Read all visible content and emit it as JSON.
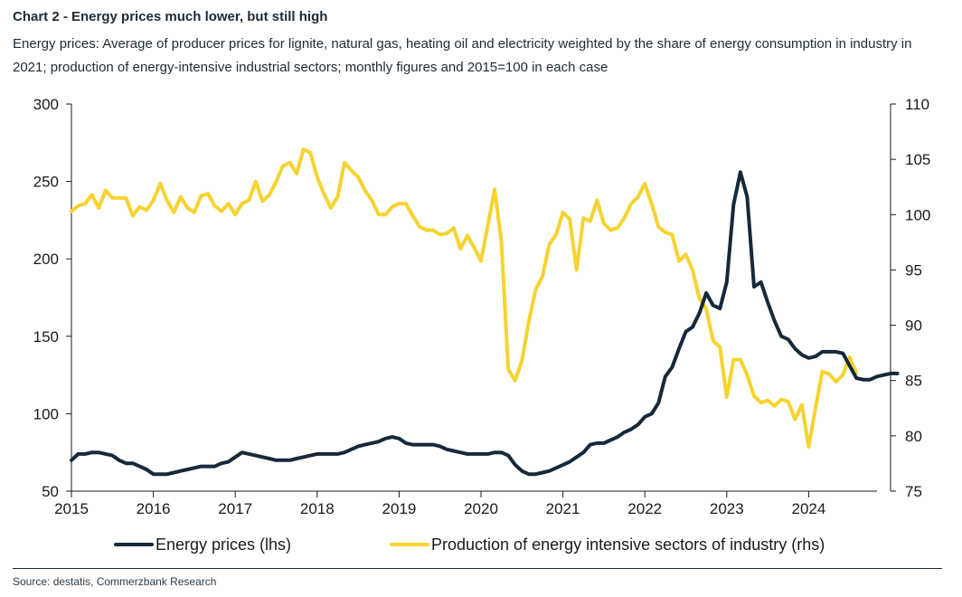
{
  "header": {
    "title": "Chart 2 - Energy prices much lower, but still high",
    "subtitle": "Energy prices: Average of producer prices for lignite, natural gas, heating oil and electricity weighted by the share of energy consumption in industry in 2021; production of energy-intensive industrial sectors; monthly figures and 2015=100 in each case"
  },
  "footer": {
    "source": "Source: destatis, Commerzbank Research"
  },
  "chart_data": {
    "type": "line",
    "x_axis": {
      "ticks": [
        "2015",
        "2016",
        "2017",
        "2018",
        "2019",
        "2020",
        "2021",
        "2022",
        "2023",
        "2024"
      ],
      "start": 2015,
      "end": 2025
    },
    "y_left": {
      "min": 50,
      "max": 300,
      "ticks": [
        50,
        100,
        150,
        200,
        250,
        300
      ]
    },
    "y_right": {
      "min": 75,
      "max": 110,
      "ticks": [
        75,
        80,
        85,
        90,
        95,
        100,
        105,
        110
      ]
    },
    "grid": false,
    "legend_position": "bottom",
    "colors": {
      "energy": "#16293a",
      "production": "#f6d330"
    },
    "series": [
      {
        "name": "Energy prices (lhs)",
        "axis": "left",
        "start": "2015-01",
        "values": [
          70,
          74,
          74,
          75,
          75,
          74,
          73,
          70,
          68,
          68,
          66,
          64,
          61,
          61,
          61,
          62,
          63,
          64,
          65,
          66,
          66,
          66,
          68,
          69,
          72,
          75,
          74,
          73,
          72,
          71,
          70,
          70,
          70,
          71,
          72,
          73,
          74,
          74,
          74,
          74,
          75,
          77,
          79,
          80,
          81,
          82,
          84,
          85,
          84,
          81,
          80,
          80,
          80,
          80,
          79,
          77,
          76,
          75,
          74,
          74,
          74,
          74,
          75,
          75,
          73,
          67,
          63,
          61,
          61,
          62,
          63,
          65,
          67,
          69,
          72,
          75,
          80,
          81,
          81,
          83,
          85,
          88,
          90,
          93,
          98,
          100,
          107,
          124,
          130,
          142,
          153,
          156,
          165,
          178,
          170,
          168,
          185,
          235,
          256,
          240,
          182,
          185,
          172,
          160,
          150,
          148,
          142,
          138,
          136,
          137,
          140,
          140,
          140,
          139,
          131,
          123,
          122,
          122,
          124,
          125,
          126,
          126
        ]
      },
      {
        "name": "Production of energy intensive sectors of industry (rhs)",
        "axis": "right",
        "start": "2015-01",
        "values": [
          100.3,
          100.8,
          101.0,
          101.8,
          100.6,
          102.2,
          101.5,
          101.5,
          101.5,
          99.9,
          100.7,
          100.4,
          101.3,
          102.8,
          101.3,
          100.2,
          101.6,
          100.6,
          100.2,
          101.7,
          101.9,
          100.8,
          100.3,
          101.0,
          100.0,
          101.0,
          101.3,
          103.0,
          101.2,
          101.8,
          103.0,
          104.4,
          104.7,
          103.7,
          105.9,
          105.6,
          103.4,
          101.9,
          100.6,
          101.6,
          104.7,
          104.0,
          103.4,
          102.2,
          101.3,
          100.0,
          100.0,
          100.7,
          101.0,
          101.0,
          99.9,
          98.9,
          98.6,
          98.6,
          98.2,
          98.3,
          98.8,
          96.9,
          98.1,
          97.0,
          95.8,
          99.0,
          102.3,
          97.5,
          86.0,
          85.0,
          86.8,
          90.3,
          93.2,
          94.4,
          97.3,
          98.2,
          100.2,
          99.6,
          95.0,
          99.7,
          99.4,
          101.3,
          99.2,
          98.6,
          98.8,
          99.7,
          101.0,
          101.6,
          102.8,
          101.0,
          98.9,
          98.4,
          98.2,
          95.8,
          96.4,
          95.0,
          92.4,
          91.5,
          88.6,
          88.0,
          83.5,
          86.9,
          86.9,
          85.5,
          83.6,
          83.0,
          83.2,
          82.7,
          83.3,
          83.1,
          81.5,
          82.8,
          79.0,
          82.5,
          85.8,
          85.6,
          84.9,
          85.5,
          87.1,
          85.7
        ]
      }
    ]
  }
}
